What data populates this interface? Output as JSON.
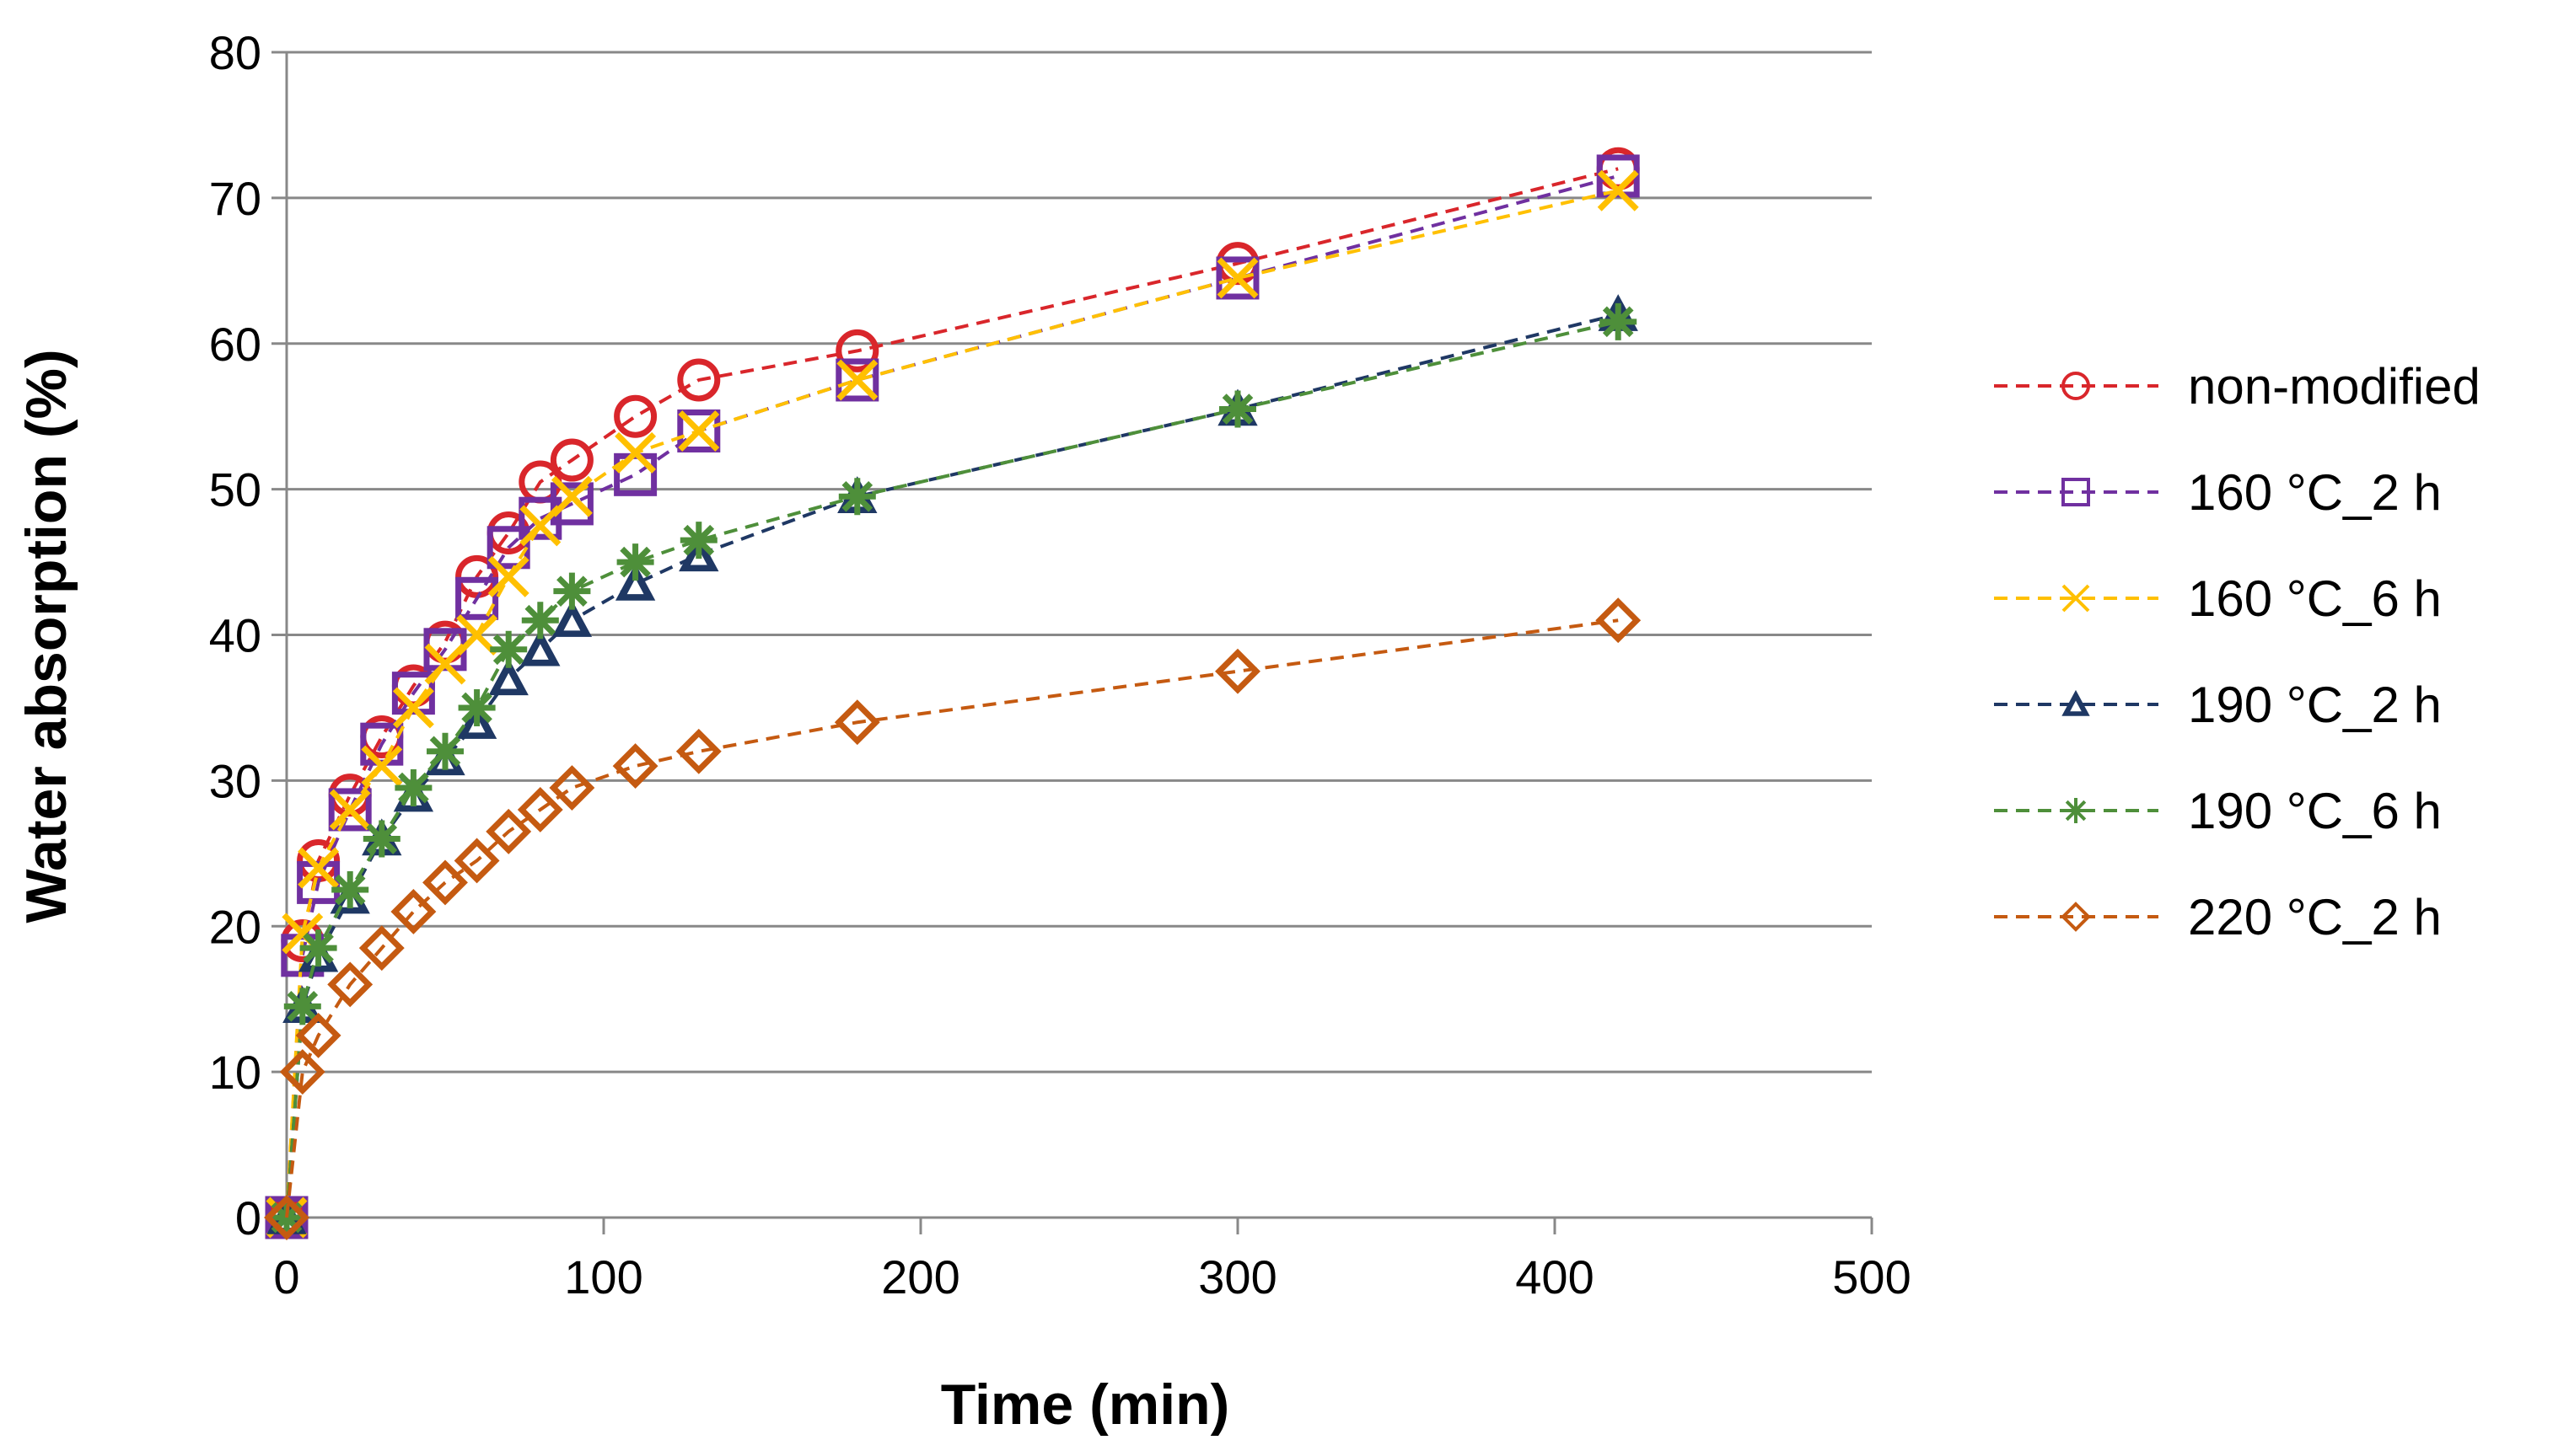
{
  "chart_data": {
    "type": "line",
    "title": "",
    "xlabel": "Time (min)",
    "ylabel": "Water absorption (%)",
    "xlim": [
      0,
      500
    ],
    "ylim": [
      0,
      80
    ],
    "xticks": [
      0,
      100,
      200,
      300,
      400,
      500
    ],
    "yticks": [
      0,
      10,
      20,
      30,
      40,
      50,
      60,
      70,
      80
    ],
    "grid": "horizontal",
    "legend": "right",
    "series": [
      {
        "name": "non-modified",
        "color": "#d9262b",
        "marker": "circle",
        "x": [
          0,
          5,
          10,
          20,
          30,
          40,
          50,
          60,
          70,
          80,
          90,
          110,
          130,
          180,
          300,
          420
        ],
        "y": [
          0,
          19,
          24.5,
          29,
          33,
          36.5,
          39.5,
          44,
          47,
          50.5,
          52,
          55,
          57.5,
          59.5,
          65.5,
          72
        ]
      },
      {
        "name": "160 °C_2 h",
        "color": "#7030a0",
        "marker": "square",
        "x": [
          0,
          5,
          10,
          20,
          30,
          40,
          50,
          60,
          70,
          80,
          90,
          110,
          130,
          180,
          300,
          420
        ],
        "y": [
          0,
          18,
          23,
          28,
          32.5,
          36,
          39,
          42.5,
          46,
          48,
          49,
          51,
          54,
          57.5,
          64.5,
          71.5
        ]
      },
      {
        "name": "160 °C_6 h",
        "color": "#ffc000",
        "marker": "x",
        "x": [
          0,
          5,
          10,
          20,
          30,
          40,
          50,
          60,
          70,
          80,
          90,
          110,
          130,
          180,
          300,
          420
        ],
        "y": [
          0,
          19.5,
          24,
          28,
          31,
          35,
          38,
          40,
          44,
          47.5,
          49.5,
          52.5,
          54,
          57.5,
          64.5,
          70.5
        ]
      },
      {
        "name": "190 °C_2 h",
        "color": "#1f3864",
        "marker": "triangle",
        "x": [
          0,
          5,
          10,
          20,
          30,
          40,
          50,
          60,
          70,
          80,
          90,
          110,
          130,
          180,
          300,
          420
        ],
        "y": [
          0,
          14.5,
          18,
          22,
          26,
          29,
          31.5,
          34,
          37,
          39,
          41,
          43.5,
          45.5,
          49.5,
          55.5,
          62
        ]
      },
      {
        "name": "190 °C_6 h",
        "color": "#4e8f3a",
        "marker": "star",
        "x": [
          0,
          5,
          10,
          20,
          30,
          40,
          50,
          60,
          70,
          80,
          90,
          110,
          130,
          180,
          300,
          420
        ],
        "y": [
          0,
          14.5,
          18.5,
          22.5,
          26,
          29.5,
          32,
          35,
          39,
          41,
          43,
          45,
          46.5,
          49.5,
          55.5,
          61.5
        ]
      },
      {
        "name": "220 °C_2 h",
        "color": "#c55a11",
        "marker": "diamond",
        "x": [
          0,
          5,
          10,
          20,
          30,
          40,
          50,
          60,
          70,
          80,
          90,
          110,
          130,
          180,
          300,
          420
        ],
        "y": [
          0,
          10,
          12.5,
          16,
          18.5,
          21,
          23,
          24.5,
          26.5,
          28,
          29.5,
          31,
          32,
          34,
          37.5,
          41
        ]
      }
    ]
  }
}
